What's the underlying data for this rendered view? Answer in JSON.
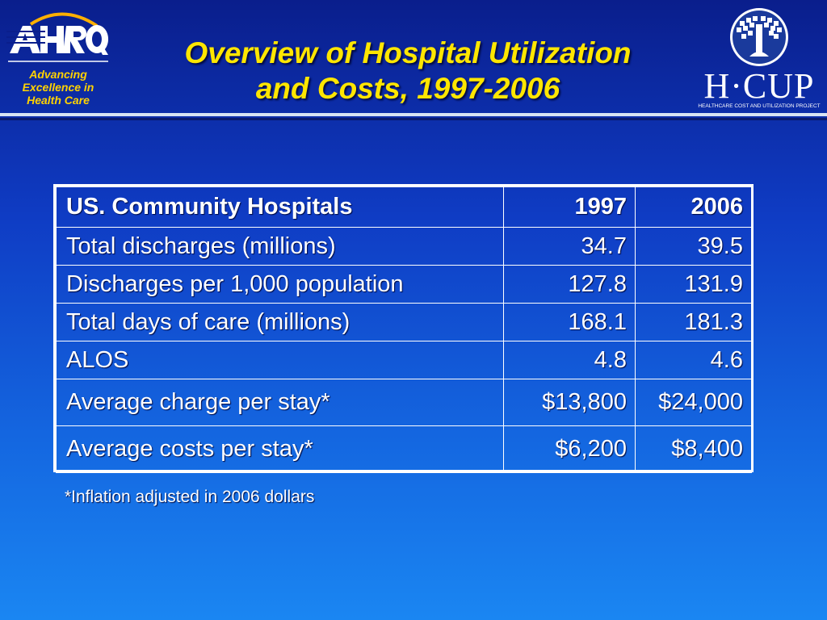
{
  "header": {
    "title_line1": "Overview of Hospital Utilization",
    "title_line2": "and Costs, 1997-2006",
    "ahrq_logo": {
      "wordmark": "AHRQ",
      "tagline_line1": "Advancing",
      "tagline_line2": "Excellence in",
      "tagline_line3": "Health Care",
      "accent_color": "#ffd200"
    },
    "hcup_logo": {
      "wordmark": "H·CUP",
      "subtitle": "HEALTHCARE COST AND UTILIZATION PROJECT",
      "icon": "tree-emblem-icon"
    }
  },
  "table": {
    "headers": [
      "US. Community Hospitals",
      "1997",
      "2006"
    ],
    "rows": [
      [
        "Total discharges (millions)",
        "34.7",
        "39.5"
      ],
      [
        "Discharges per 1,000 population",
        "127.8",
        "131.9"
      ],
      [
        "Total days of care (millions)",
        "168.1",
        "181.3"
      ],
      [
        "ALOS",
        "4.8",
        "4.6"
      ],
      [
        "Average charge per stay*",
        "$13,800",
        "$24,000"
      ],
      [
        "Average costs per stay*",
        "$6,200",
        "$8,400"
      ]
    ]
  },
  "footnote": "*Inflation adjusted in 2006 dollars",
  "colors": {
    "title": "#ffe600",
    "background_top": "#0a1e8c",
    "background_bottom": "#1a86f2"
  }
}
